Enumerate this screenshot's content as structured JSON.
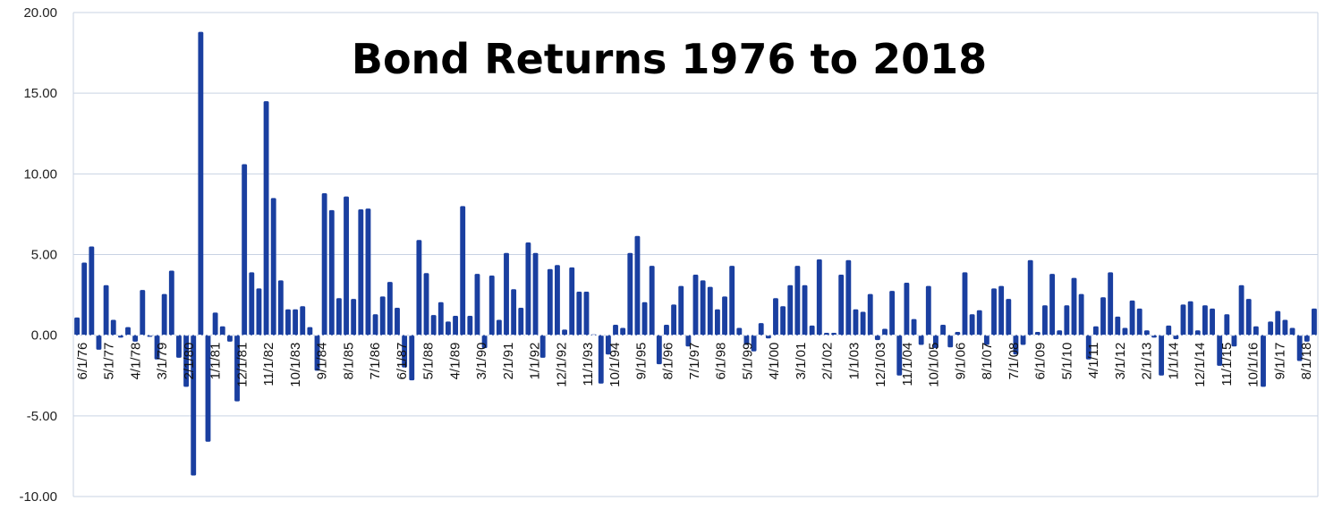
{
  "chart_data": {
    "type": "bar",
    "title": "Bond Returns 1976 to 2018",
    "xlabel": "",
    "ylabel": "",
    "ylim": [
      -10,
      20
    ],
    "yticks": [
      "20.00",
      "15.00",
      "10.00",
      "5.00",
      "0.00",
      "-5.00",
      "-10.00"
    ],
    "grid": true,
    "legend": "none",
    "bar_color": "#1a3fa0",
    "x_tick_labels": [
      "6/1/76",
      "5/1/77",
      "4/1/78",
      "3/1/79",
      "2/1/80",
      "1/1/81",
      "12/1/81",
      "11/1/82",
      "10/1/83",
      "9/1/84",
      "8/1/85",
      "7/1/86",
      "6/1/87",
      "5/1/88",
      "4/1/89",
      "3/1/90",
      "2/1/91",
      "1/1/92",
      "12/1/92",
      "11/1/93",
      "10/1/94",
      "9/1/95",
      "8/1/96",
      "7/1/97",
      "6/1/98",
      "5/1/99",
      "4/1/00",
      "3/1/01",
      "2/1/02",
      "1/1/03",
      "12/1/03",
      "11/1/04",
      "10/1/05",
      "9/1/06",
      "8/1/07",
      "7/1/08",
      "6/1/09",
      "5/1/10",
      "4/1/11",
      "3/1/12",
      "2/1/13",
      "1/1/14",
      "12/1/14",
      "11/1/15",
      "10/1/16",
      "9/1/17",
      "8/1/18"
    ],
    "values": [
      1.1,
      4.5,
      5.5,
      -0.9,
      3.1,
      0.95,
      -0.15,
      0.5,
      -0.4,
      2.8,
      -0.1,
      -1.5,
      2.55,
      4.0,
      -1.4,
      -3.2,
      -8.7,
      18.8,
      -6.6,
      1.4,
      0.55,
      -0.4,
      -4.1,
      10.6,
      3.9,
      2.9,
      14.5,
      8.5,
      3.4,
      1.6,
      1.6,
      1.8,
      0.5,
      -2.2,
      8.8,
      7.75,
      2.3,
      8.6,
      2.25,
      7.8,
      7.85,
      1.3,
      2.4,
      3.3,
      1.7,
      -2.0,
      -2.8,
      5.9,
      3.85,
      1.25,
      2.05,
      0.85,
      1.2,
      8.0,
      1.2,
      3.8,
      -0.8,
      3.7,
      0.95,
      5.1,
      2.85,
      1.7,
      5.75,
      5.1,
      -1.4,
      4.1,
      4.35,
      0.35,
      4.2,
      2.7,
      2.7,
      0.05,
      -3.0,
      -1.2,
      0.65,
      0.45,
      5.1,
      6.15,
      2.05,
      4.3,
      -1.8,
      0.65,
      1.9,
      3.05,
      -0.7,
      3.75,
      3.4,
      3.0,
      1.6,
      2.4,
      4.3,
      0.45,
      -0.6,
      -1.0,
      0.75,
      -0.2,
      2.3,
      1.8,
      3.1,
      4.3,
      3.1,
      0.6,
      4.7,
      0.15,
      0.15,
      3.75,
      4.65,
      1.6,
      1.45,
      2.55,
      -0.3,
      0.4,
      2.75,
      -2.5,
      3.25,
      1.0,
      -0.6,
      3.05,
      -0.8,
      0.65,
      -0.75,
      0.2,
      3.9,
      1.3,
      1.55,
      -0.6,
      2.9,
      3.05,
      2.25,
      -1.2,
      -0.6,
      4.65,
      0.2,
      1.85,
      3.8,
      0.3,
      1.85,
      3.55,
      2.55,
      -1.5,
      0.55,
      2.35,
      3.9,
      1.15,
      0.45,
      2.15,
      1.65,
      0.3,
      -0.15,
      -2.5,
      0.6,
      -0.25,
      1.9,
      2.1,
      0.3,
      1.85,
      1.65,
      -1.9,
      1.3,
      -0.7,
      3.1,
      2.25,
      0.55,
      -3.2,
      0.85,
      1.5,
      0.95,
      0.45,
      -1.6,
      -0.4,
      1.65
    ]
  }
}
